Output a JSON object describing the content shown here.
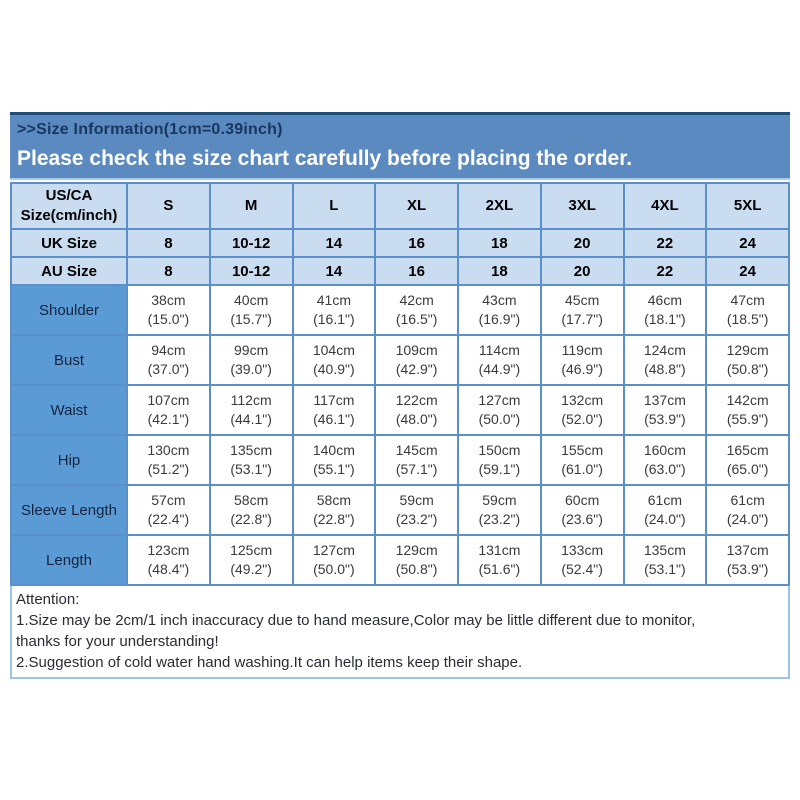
{
  "banner": {
    "title": ">>Size Information(1cm=0.39inch)",
    "subtitle": "Please check the size chart carefully before placing the order."
  },
  "size_chart": {
    "corner_header_line1": "US/CA",
    "corner_header_line2": "Size(cm/inch)",
    "columns": [
      "S",
      "M",
      "L",
      "XL",
      "2XL",
      "3XL",
      "4XL",
      "5XL"
    ],
    "region_size_rows": [
      {
        "label": "UK Size",
        "values": [
          "8",
          "10-12",
          "14",
          "16",
          "18",
          "20",
          "22",
          "24"
        ]
      },
      {
        "label": "AU Size",
        "values": [
          "8",
          "10-12",
          "14",
          "16",
          "18",
          "20",
          "22",
          "24"
        ]
      }
    ],
    "measurement_rows": [
      {
        "label": "Shoulder",
        "cells": [
          {
            "cm": "38cm",
            "inch": "(15.0\")"
          },
          {
            "cm": "40cm",
            "inch": "(15.7\")"
          },
          {
            "cm": "41cm",
            "inch": "(16.1\")"
          },
          {
            "cm": "42cm",
            "inch": "(16.5\")"
          },
          {
            "cm": "43cm",
            "inch": "(16.9\")"
          },
          {
            "cm": "45cm",
            "inch": "(17.7\")"
          },
          {
            "cm": "46cm",
            "inch": "(18.1\")"
          },
          {
            "cm": "47cm",
            "inch": "(18.5\")"
          }
        ]
      },
      {
        "label": "Bust",
        "cells": [
          {
            "cm": "94cm",
            "inch": "(37.0\")"
          },
          {
            "cm": "99cm",
            "inch": "(39.0\")"
          },
          {
            "cm": "104cm",
            "inch": "(40.9\")"
          },
          {
            "cm": "109cm",
            "inch": "(42.9\")"
          },
          {
            "cm": "114cm",
            "inch": "(44.9\")"
          },
          {
            "cm": "119cm",
            "inch": "(46.9\")"
          },
          {
            "cm": "124cm",
            "inch": "(48.8\")"
          },
          {
            "cm": "129cm",
            "inch": "(50.8\")"
          }
        ]
      },
      {
        "label": "Waist",
        "cells": [
          {
            "cm": "107cm",
            "inch": "(42.1\")"
          },
          {
            "cm": "112cm",
            "inch": "(44.1\")"
          },
          {
            "cm": "117cm",
            "inch": "(46.1\")"
          },
          {
            "cm": "122cm",
            "inch": "(48.0\")"
          },
          {
            "cm": "127cm",
            "inch": "(50.0\")"
          },
          {
            "cm": "132cm",
            "inch": "(52.0\")"
          },
          {
            "cm": "137cm",
            "inch": "(53.9\")"
          },
          {
            "cm": "142cm",
            "inch": "(55.9\")"
          }
        ]
      },
      {
        "label": "Hip",
        "cells": [
          {
            "cm": "130cm",
            "inch": "(51.2\")"
          },
          {
            "cm": "135cm",
            "inch": "(53.1\")"
          },
          {
            "cm": "140cm",
            "inch": "(55.1\")"
          },
          {
            "cm": "145cm",
            "inch": "(57.1\")"
          },
          {
            "cm": "150cm",
            "inch": "(59.1\")"
          },
          {
            "cm": "155cm",
            "inch": "(61.0\")"
          },
          {
            "cm": "160cm",
            "inch": "(63.0\")"
          },
          {
            "cm": "165cm",
            "inch": "(65.0\")"
          }
        ]
      },
      {
        "label": "Sleeve Length",
        "cells": [
          {
            "cm": "57cm",
            "inch": "(22.4\")"
          },
          {
            "cm": "58cm",
            "inch": "(22.8\")"
          },
          {
            "cm": "58cm",
            "inch": "(22.8\")"
          },
          {
            "cm": "59cm",
            "inch": "(23.2\")"
          },
          {
            "cm": "59cm",
            "inch": "(23.2\")"
          },
          {
            "cm": "60cm",
            "inch": "(23.6\")"
          },
          {
            "cm": "61cm",
            "inch": "(24.0\")"
          },
          {
            "cm": "61cm",
            "inch": "(24.0\")"
          }
        ]
      },
      {
        "label": "Length",
        "cells": [
          {
            "cm": "123cm",
            "inch": "(48.4\")"
          },
          {
            "cm": "125cm",
            "inch": "(49.2\")"
          },
          {
            "cm": "127cm",
            "inch": "(50.0\")"
          },
          {
            "cm": "129cm",
            "inch": "(50.8\")"
          },
          {
            "cm": "131cm",
            "inch": "(51.6\")"
          },
          {
            "cm": "133cm",
            "inch": "(52.4\")"
          },
          {
            "cm": "135cm",
            "inch": "(53.1\")"
          },
          {
            "cm": "137cm",
            "inch": "(53.9\")"
          }
        ]
      }
    ]
  },
  "attention": {
    "heading": "Attention:",
    "lines": [
      "1.Size may be 2cm/1 inch inaccuracy due to hand measure,Color may be little different due to monitor,",
      "thanks for your understanding!",
      "2.Suggestion of cold water hand washing.It can help items keep their shape."
    ]
  },
  "colors": {
    "banner_bg": "#5b8ac1",
    "banner_top_border": "#1f4e79",
    "banner_bottom_border": "#a9c7e7",
    "banner_title": "#17375e",
    "banner_subtitle": "#ffffff",
    "header_cell_bg": "#cadcf0",
    "label_cell_bg": "#5b9bd5",
    "grid_border": "#5a8fc9",
    "value_text": "#3b3b3b",
    "attention_border": "#9dc3e6",
    "attention_text": "#2b2b36"
  }
}
